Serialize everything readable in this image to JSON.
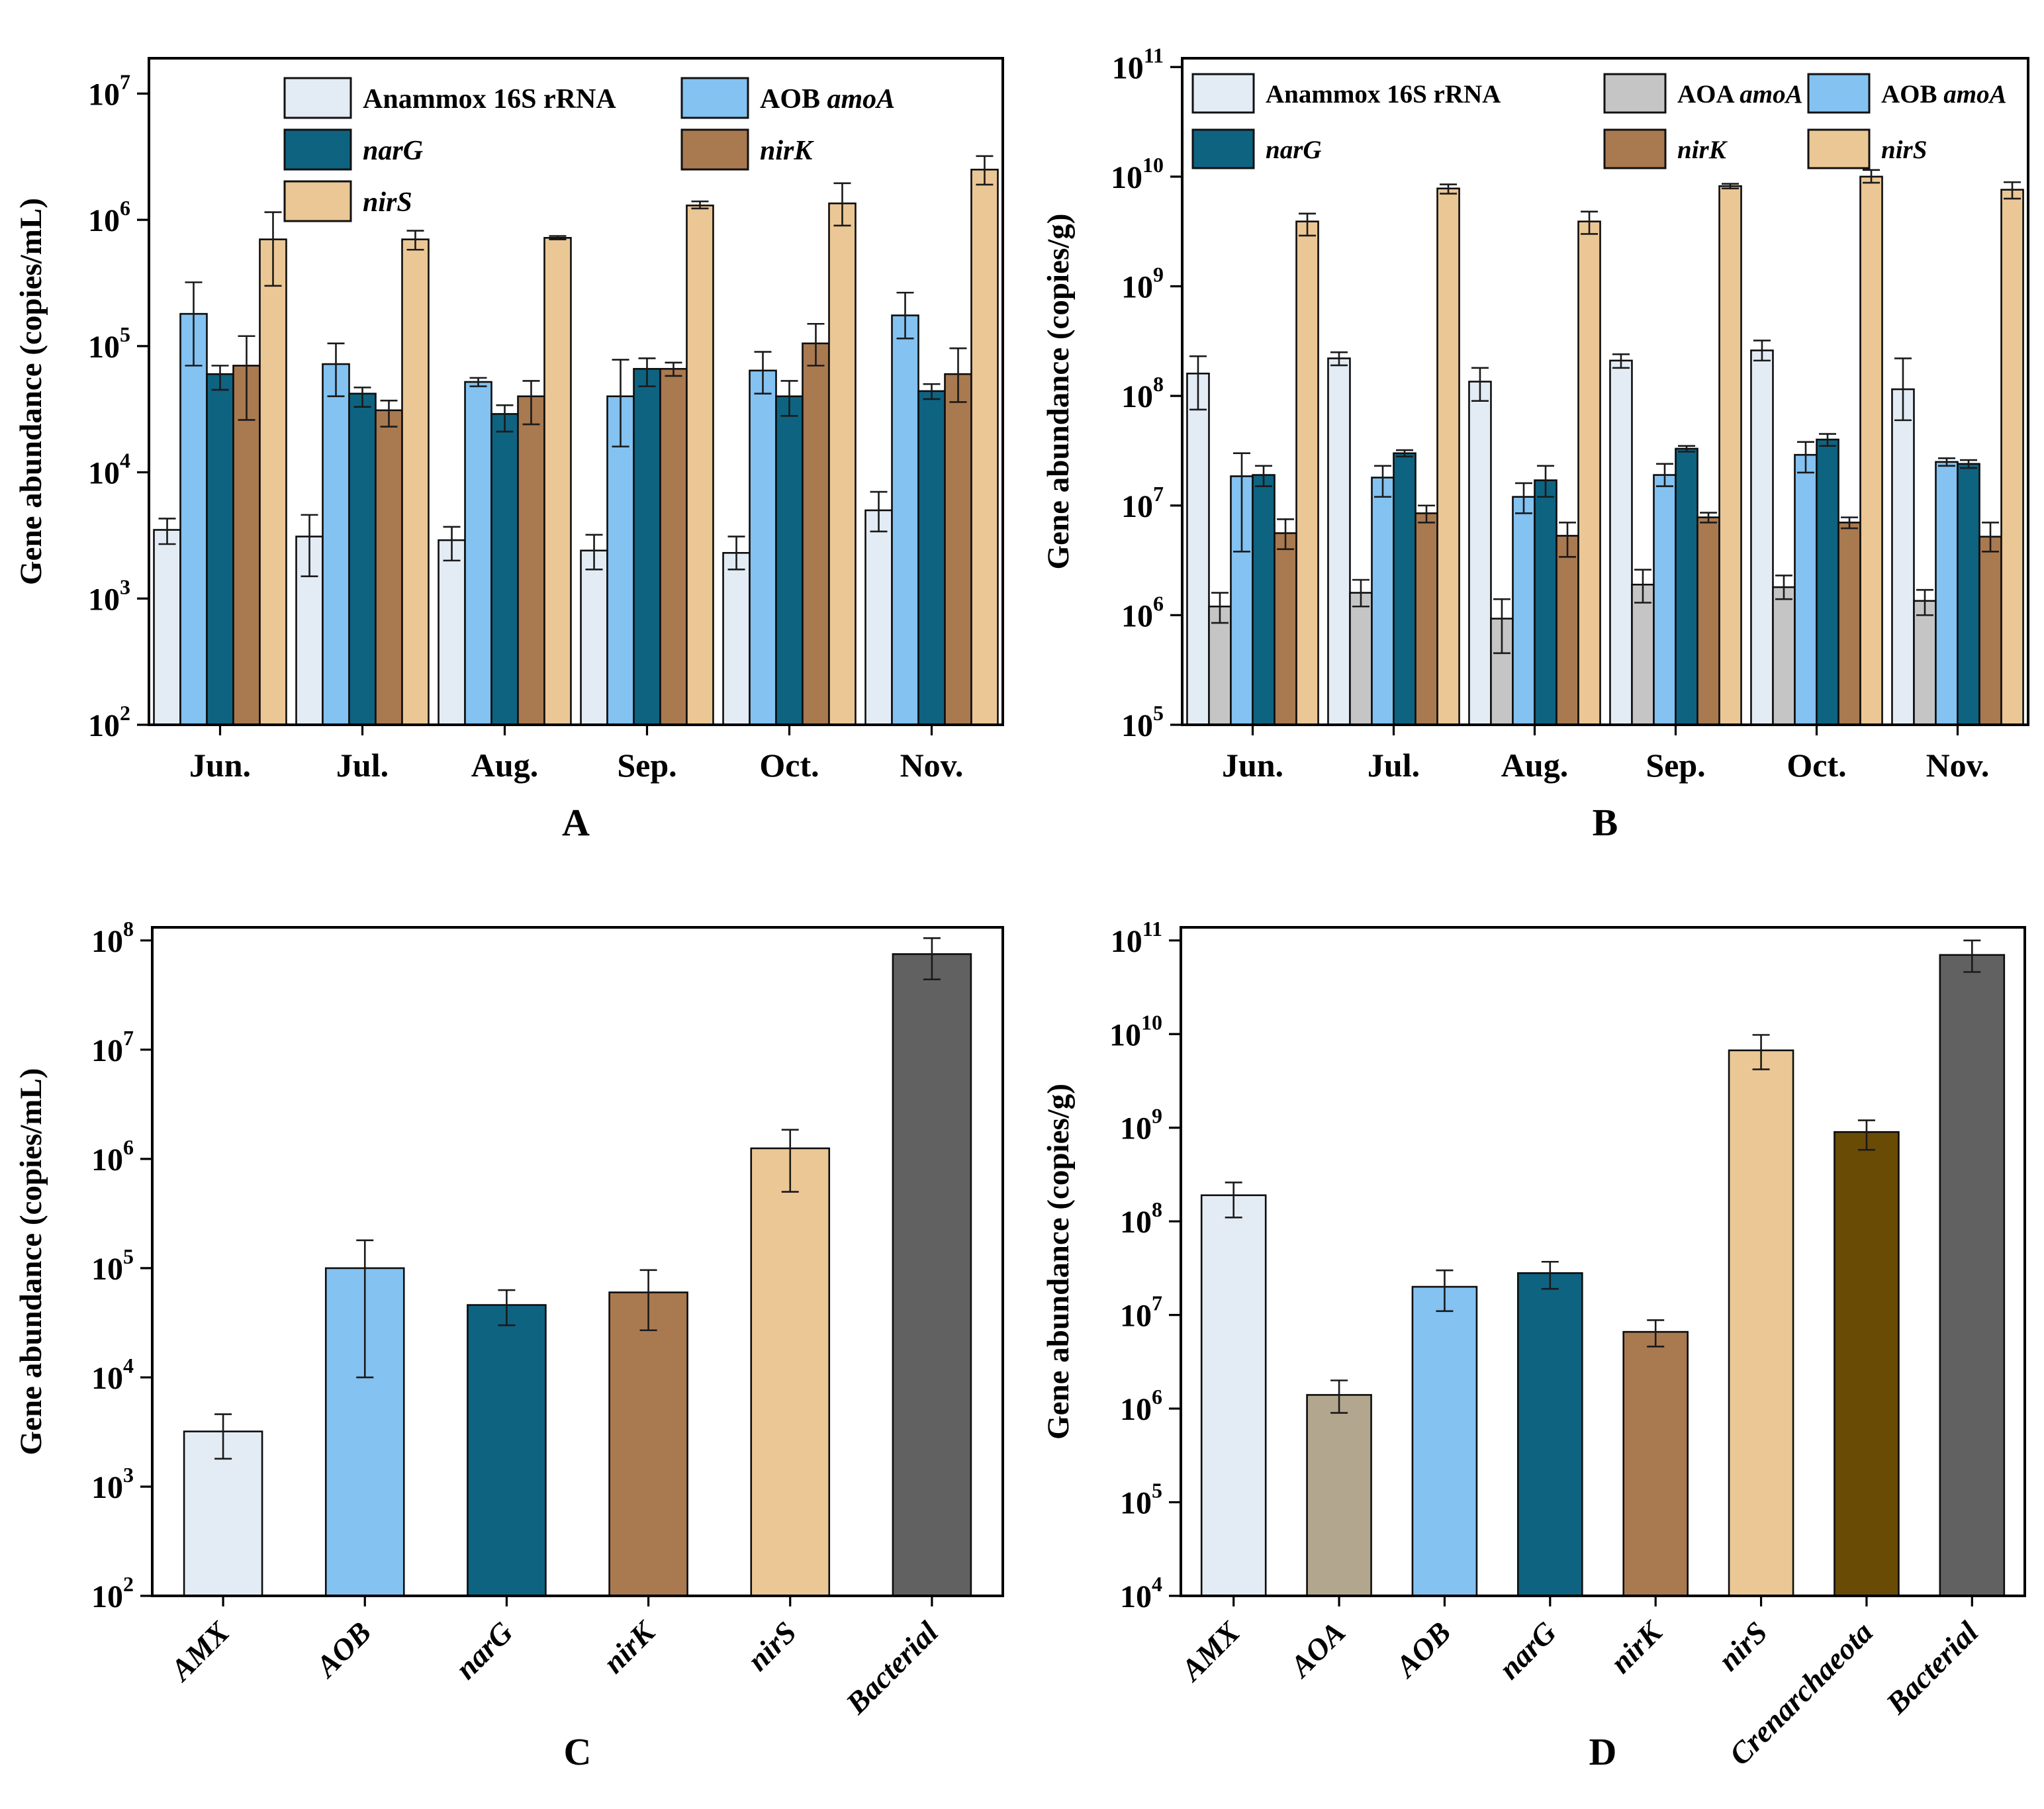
{
  "figure": {
    "background": "#ffffff"
  },
  "colors": {
    "anammox": "#e3ecf5",
    "aoa_grey": "#c5c5c5",
    "aoa_khaki": "#b2a78e",
    "aob": "#83c2f1",
    "narG": "#0e6381",
    "nirK": "#a97950",
    "nirS": "#ebc795",
    "crenarchaeota": "#6a4b06",
    "bacterial": "#616161",
    "bar_outline": "#0d0d0d",
    "error_bar": "#1a1a1a",
    "axis": "#000000"
  },
  "chart_data": [
    {
      "panel_label": "A",
      "type": "bar",
      "grouped": true,
      "ylabel": "Gene abundance (copies/mL)",
      "y_unit": "copies/mL",
      "log_min": 2,
      "log_max": 7,
      "categories": [
        "Jun.",
        "Jul.",
        "Aug.",
        "Sep.",
        "Oct.",
        "Nov."
      ],
      "series": [
        {
          "name": "Anammox 16S rRNA",
          "name_parts": [
            {
              "t": "Anammox 16S rRNA",
              "i": false
            }
          ],
          "color_key": "anammox",
          "values": [
            3500,
            3100,
            2900,
            2400,
            2300,
            5000
          ],
          "err_lo": [
            2700,
            1500,
            2000,
            1700,
            1700,
            3400
          ],
          "err_hi": [
            4300,
            4600,
            3700,
            3200,
            3100,
            7000
          ]
        },
        {
          "name": "AOB amoA",
          "name_parts": [
            {
              "t": "AOB ",
              "i": false
            },
            {
              "t": "amoA",
              "i": true
            }
          ],
          "color_key": "aob",
          "values": [
            180000,
            72000,
            52000,
            40000,
            64000,
            175000
          ],
          "err_lo": [
            70000,
            40000,
            48000,
            16000,
            42000,
            115000
          ],
          "err_hi": [
            320000,
            105000,
            56000,
            78000,
            90000,
            265000
          ]
        },
        {
          "name": "narG",
          "name_parts": [
            {
              "t": "narG",
              "i": true
            }
          ],
          "color_key": "narG",
          "values": [
            60000,
            42000,
            29000,
            66000,
            40000,
            44000
          ],
          "err_lo": [
            45000,
            33000,
            21000,
            48000,
            28000,
            38000
          ],
          "err_hi": [
            70000,
            47000,
            34000,
            80000,
            53000,
            50000
          ]
        },
        {
          "name": "nirK",
          "name_parts": [
            {
              "t": "nirK",
              "i": true
            }
          ],
          "color_key": "nirK",
          "values": [
            70000,
            31000,
            40000,
            66000,
            105000,
            60000
          ],
          "err_lo": [
            26000,
            23000,
            24000,
            58000,
            70000,
            36000
          ],
          "err_hi": [
            120000,
            37000,
            53000,
            74000,
            150000,
            96000
          ]
        },
        {
          "name": "nirS",
          "name_parts": [
            {
              "t": "nirS",
              "i": true
            }
          ],
          "color_key": "nirS",
          "values": [
            700000,
            700000,
            720000,
            1300000,
            1350000,
            2500000
          ],
          "err_lo": [
            300000,
            580000,
            700000,
            1230000,
            900000,
            1900000
          ],
          "err_hi": [
            1150000,
            820000,
            745000,
            1400000,
            1950000,
            3200000
          ]
        }
      ],
      "legend_columns": [
        [
          "Anammox 16S rRNA",
          "narG",
          "nirS"
        ],
        [
          "AOB amoA",
          "nirK"
        ]
      ]
    },
    {
      "panel_label": "B",
      "type": "bar",
      "grouped": true,
      "ylabel": "Gene abundance (copies/g)",
      "y_unit": "copies/g",
      "log_min": 5,
      "log_max": 11,
      "categories": [
        "Jun.",
        "Jul.",
        "Aug.",
        "Sep.",
        "Oct.",
        "Nov."
      ],
      "series": [
        {
          "name": "Anammox 16S rRNA",
          "name_parts": [
            {
              "t": "Anammox 16S rRNA",
              "i": false
            }
          ],
          "color_key": "anammox",
          "values": [
            160000000.0,
            220000000.0,
            135000000.0,
            210000000.0,
            260000000.0,
            115000000.0
          ],
          "err_lo": [
            75000000.0,
            190000000.0,
            90000000.0,
            180000000.0,
            210000000.0,
            60000000.0
          ],
          "err_hi": [
            230000000.0,
            250000000.0,
            180000000.0,
            240000000.0,
            320000000.0,
            220000000.0
          ]
        },
        {
          "name": "AOA amoA",
          "name_parts": [
            {
              "t": "AOA ",
              "i": false
            },
            {
              "t": "amoA",
              "i": true
            }
          ],
          "color_key": "aoa_grey",
          "values": [
            1200000.0,
            1600000.0,
            930000.0,
            1900000.0,
            1800000.0,
            1350000.0
          ],
          "err_lo": [
            850000.0,
            1200000.0,
            450000.0,
            1300000.0,
            1400000.0,
            1000000.0
          ],
          "err_hi": [
            1600000.0,
            2100000.0,
            1400000.0,
            2600000.0,
            2300000.0,
            1700000.0
          ]
        },
        {
          "name": "AOB amoA",
          "name_parts": [
            {
              "t": "AOB ",
              "i": false
            },
            {
              "t": "amoA",
              "i": true
            }
          ],
          "color_key": "aob",
          "values": [
            18500000.0,
            18000000.0,
            12000000.0,
            19000000.0,
            29000000.0,
            25000000.0
          ],
          "err_lo": [
            3800000.0,
            12000000.0,
            8500000.0,
            15000000.0,
            20000000.0,
            23000000.0
          ],
          "err_hi": [
            30000000.0,
            23000000.0,
            16000000.0,
            24000000.0,
            38000000.0,
            27000000.0
          ]
        },
        {
          "name": "narG",
          "name_parts": [
            {
              "t": "narG",
              "i": true
            }
          ],
          "color_key": "narG",
          "values": [
            19000000.0,
            30000000.0,
            17000000.0,
            33000000.0,
            40000000.0,
            24000000.0
          ],
          "err_lo": [
            15000000.0,
            28000000.0,
            12000000.0,
            31000000.0,
            35000000.0,
            22000000.0
          ],
          "err_hi": [
            23000000.0,
            32000000.0,
            23000000.0,
            35000000.0,
            45000000.0,
            26000000.0
          ]
        },
        {
          "name": "nirK",
          "name_parts": [
            {
              "t": "nirK",
              "i": true
            }
          ],
          "color_key": "nirK",
          "values": [
            5600000.0,
            8500000.0,
            5300000.0,
            7800000.0,
            7000000.0,
            5200000.0
          ],
          "err_lo": [
            4000000.0,
            7000000.0,
            3400000.0,
            7000000.0,
            6200000.0,
            3800000.0
          ],
          "err_hi": [
            7500000.0,
            10000000.0,
            7000000.0,
            8600000.0,
            7800000.0,
            7000000.0
          ]
        },
        {
          "name": "nirS",
          "name_parts": [
            {
              "t": "nirS",
              "i": true
            }
          ],
          "color_key": "nirS",
          "values": [
            3900000000.0,
            7800000000.0,
            3900000000.0,
            8200000000.0,
            10000000000.0,
            7600000000.0
          ],
          "err_lo": [
            2900000000.0,
            7000000000.0,
            3000000000.0,
            7800000000.0,
            8800000000.0,
            6300000000.0
          ],
          "err_hi": [
            4600000000.0,
            8500000000.0,
            4800000000.0,
            8600000000.0,
            11500000000.0,
            8900000000.0
          ]
        }
      ],
      "legend_columns": [
        [
          "Anammox 16S rRNA",
          "narG"
        ],
        [
          "AOA amoA",
          "nirK"
        ],
        [
          "AOB amoA",
          "nirS"
        ]
      ]
    },
    {
      "panel_label": "C",
      "type": "bar",
      "grouped": false,
      "ylabel": "Gene abundance (copies/mL)",
      "y_unit": "copies/mL",
      "log_min": 2,
      "log_max": 8,
      "bars": [
        {
          "label": "AMX",
          "color_key": "anammox",
          "value": 3200,
          "lo": 1800,
          "hi": 4600
        },
        {
          "label": "AOB",
          "color_key": "aob",
          "value": 100000,
          "lo": 10000,
          "hi": 180000
        },
        {
          "label": "narG",
          "color_key": "narG",
          "value": 46000,
          "lo": 30000,
          "hi": 63000
        },
        {
          "label": "nirK",
          "color_key": "nirK",
          "value": 60000,
          "lo": 27000,
          "hi": 96000
        },
        {
          "label": "nirS",
          "color_key": "nirS",
          "value": 1250000,
          "lo": 500000,
          "hi": 1850000
        },
        {
          "label": "Bacterial",
          "color_key": "bacterial",
          "value": 75000000.0,
          "lo": 44000000.0,
          "hi": 105000000.0
        }
      ]
    },
    {
      "panel_label": "D",
      "type": "bar",
      "grouped": false,
      "ylabel": "Gene abundance (copies/g)",
      "y_unit": "copies/g",
      "log_min": 4,
      "log_max": 11,
      "bars": [
        {
          "label": "AMX",
          "color_key": "anammox",
          "value": 190000000.0,
          "lo": 110000000.0,
          "hi": 260000000.0
        },
        {
          "label": "AOA",
          "color_key": "aoa_khaki",
          "value": 1400000.0,
          "lo": 900000.0,
          "hi": 2000000.0
        },
        {
          "label": "AOB",
          "color_key": "aob",
          "value": 20000000.0,
          "lo": 11000000.0,
          "hi": 30000000.0
        },
        {
          "label": "narG",
          "color_key": "narG",
          "value": 28000000.0,
          "lo": 19000000.0,
          "hi": 37000000.0
        },
        {
          "label": "nirK",
          "color_key": "nirK",
          "value": 6600000.0,
          "lo": 4600000.0,
          "hi": 8800000.0
        },
        {
          "label": "nirS",
          "color_key": "nirS",
          "value": 6700000000.0,
          "lo": 4200000000.0,
          "hi": 9800000000.0
        },
        {
          "label": "Crenarchaeota",
          "color_key": "crenarchaeota",
          "value": 900000000.0,
          "lo": 580000000.0,
          "hi": 1200000000.0
        },
        {
          "label": "Bacterial",
          "color_key": "bacterial",
          "value": 70000000000.0,
          "lo": 46000000000.0,
          "hi": 100000000000.0
        }
      ]
    }
  ]
}
